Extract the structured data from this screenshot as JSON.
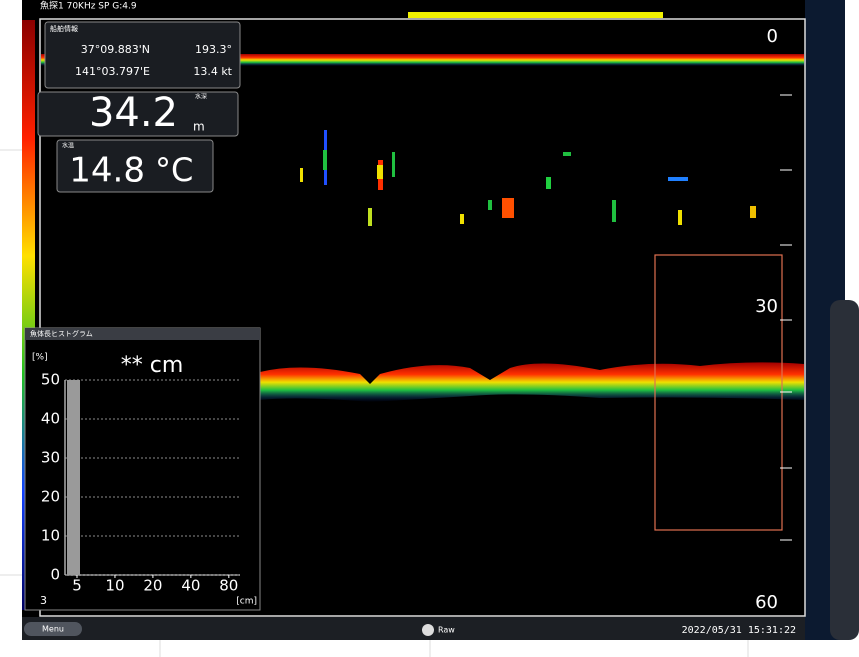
{
  "status": {
    "channel": "魚探1 70KHz SP G:4.9"
  },
  "nav": {
    "title": "船舶情報",
    "lat": "37°09.883'N",
    "heading": "193.3°",
    "lon": "141°03.797'E",
    "speed": "13.4 kt"
  },
  "depth": {
    "label": "水深",
    "value": "34.2",
    "unit": "m"
  },
  "temp": {
    "label": "水温",
    "value": "14.8",
    "unit": "°C"
  },
  "scale": {
    "top": "0",
    "mid": "30",
    "bottom": "60"
  },
  "histogram": {
    "title": "魚体長ヒストグラム",
    "size": "** cm",
    "y_unit": "[%]",
    "x_unit": "[cm]",
    "ylim": [
      0,
      50
    ],
    "yticks": [
      0,
      10,
      20,
      30,
      40,
      50
    ],
    "xticks": [
      5,
      10,
      20,
      40,
      80
    ],
    "bar": 50,
    "count": "3"
  },
  "footer": {
    "menu": "Menu",
    "mode": "Raw",
    "datetime": "2022/05/31 15:31:22"
  }
}
